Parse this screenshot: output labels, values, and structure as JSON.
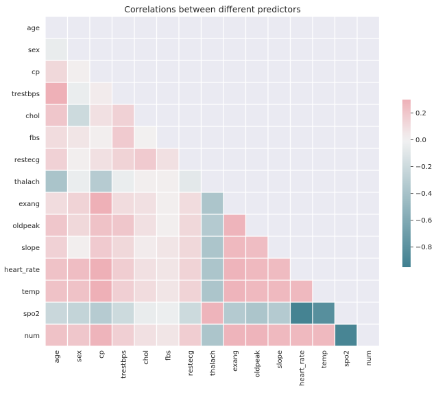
{
  "chart_data": {
    "type": "heatmap",
    "title": "Correlations between different predictors",
    "variables": [
      "age",
      "sex",
      "cp",
      "trestbps",
      "chol",
      "fbs",
      "restecg",
      "thalach",
      "exang",
      "oldpeak",
      "slope",
      "heart_rate",
      "temp",
      "spo2",
      "num"
    ],
    "matrix": [
      [
        null,
        null,
        null,
        null,
        null,
        null,
        null,
        null,
        null,
        null,
        null,
        null,
        null,
        null,
        null
      ],
      [
        -0.05,
        null,
        null,
        null,
        null,
        null,
        null,
        null,
        null,
        null,
        null,
        null,
        null,
        null,
        null
      ],
      [
        0.12,
        0.02,
        null,
        null,
        null,
        null,
        null,
        null,
        null,
        null,
        null,
        null,
        null,
        null,
        null
      ],
      [
        0.3,
        -0.04,
        0.03,
        null,
        null,
        null,
        null,
        null,
        null,
        null,
        null,
        null,
        null,
        null,
        null
      ],
      [
        0.2,
        -0.2,
        0.08,
        0.15,
        null,
        null,
        null,
        null,
        null,
        null,
        null,
        null,
        null,
        null,
        null
      ],
      [
        0.1,
        0.06,
        0.02,
        0.18,
        0.01,
        null,
        null,
        null,
        null,
        null,
        null,
        null,
        null,
        null,
        null
      ],
      [
        0.15,
        0.02,
        0.08,
        0.14,
        0.18,
        0.08,
        null,
        null,
        null,
        null,
        null,
        null,
        null,
        null,
        null
      ],
      [
        -0.38,
        -0.04,
        -0.32,
        -0.04,
        0.02,
        0.02,
        -0.08,
        null,
        null,
        null,
        null,
        null,
        null,
        null,
        null
      ],
      [
        0.1,
        0.14,
        0.3,
        0.1,
        0.08,
        0.02,
        0.1,
        -0.37,
        null,
        null,
        null,
        null,
        null,
        null,
        null
      ],
      [
        0.2,
        0.12,
        0.22,
        0.2,
        0.08,
        0.02,
        0.12,
        -0.33,
        0.28,
        null,
        null,
        null,
        null,
        null,
        null
      ],
      [
        0.15,
        0.02,
        0.18,
        0.12,
        0.03,
        0.06,
        0.12,
        -0.37,
        0.26,
        0.24,
        null,
        null,
        null,
        null,
        null
      ],
      [
        0.22,
        0.24,
        0.3,
        0.17,
        0.08,
        0.06,
        0.14,
        -0.37,
        0.28,
        0.26,
        0.25,
        null,
        null,
        null,
        null
      ],
      [
        0.22,
        0.22,
        0.3,
        0.16,
        0.1,
        0.06,
        0.14,
        -0.37,
        0.28,
        0.26,
        0.26,
        0.26,
        null,
        null,
        null
      ],
      [
        -0.22,
        -0.25,
        -0.32,
        -0.2,
        -0.05,
        -0.03,
        -0.2,
        0.28,
        -0.33,
        -0.37,
        -0.33,
        -0.92,
        -0.82,
        null,
        null
      ],
      [
        0.22,
        0.2,
        0.28,
        0.16,
        0.08,
        0.06,
        0.17,
        -0.37,
        0.28,
        0.28,
        0.26,
        0.26,
        0.26,
        -0.9,
        null
      ]
    ],
    "masked": "upper triangle and diagonal",
    "colorbar": {
      "ticks": [
        0.2,
        0.0,
        -0.2,
        -0.4,
        -0.6,
        -0.8
      ],
      "tick_labels": [
        "0.2",
        "0.0",
        "−0.2",
        "−0.4",
        "−0.6",
        "−0.8"
      ],
      "range": [
        -0.95,
        0.3
      ]
    },
    "colors": {
      "negative": "#3f7f8f",
      "center": "#f2f2f2",
      "positive": "#eeb0b7",
      "masked": "#eaeaf2",
      "gridline": "#ffffff"
    }
  }
}
